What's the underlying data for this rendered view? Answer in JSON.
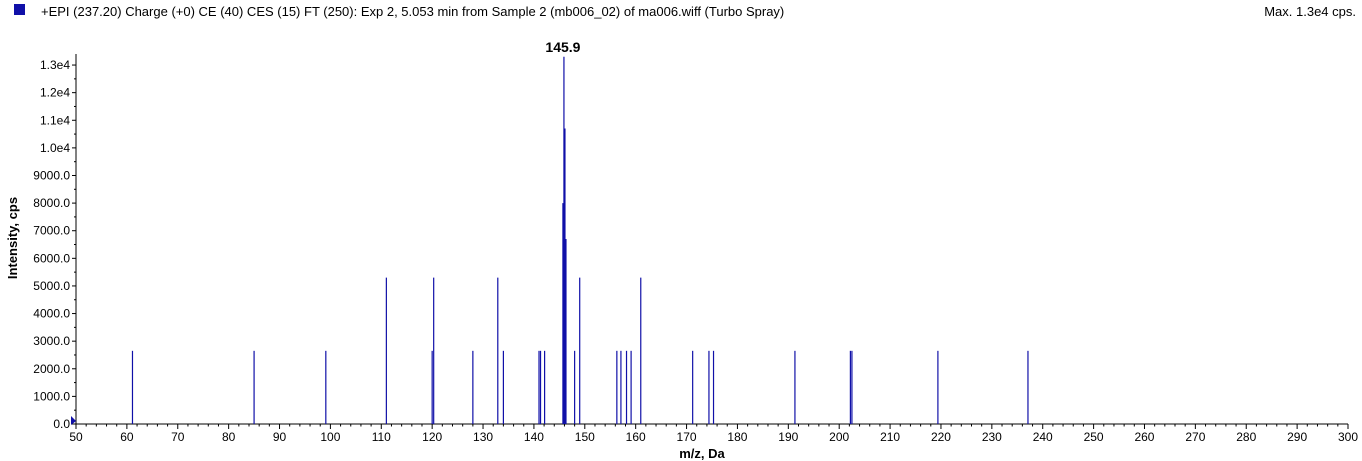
{
  "header": {
    "title": "+EPI (237.20) Charge (+0) CE (40) CES (15) FT (250): Exp 2, 5.053 min from Sample 2 (mb006_02) of ma006.wiff (Turbo Spray)",
    "max_label": "Max. 1.3e4 cps."
  },
  "colors": {
    "series": "#1010a8",
    "axis": "#000000"
  },
  "chart_data": {
    "type": "bar",
    "xlabel": "m/z, Da",
    "ylabel": "Intensity, cps",
    "xlim": [
      50,
      300
    ],
    "ylim": [
      0,
      13400
    ],
    "xticks": [
      50,
      60,
      70,
      80,
      90,
      100,
      110,
      120,
      130,
      140,
      150,
      160,
      170,
      180,
      190,
      200,
      210,
      220,
      230,
      240,
      250,
      260,
      270,
      280,
      290,
      300
    ],
    "yticks": [
      {
        "value": 0,
        "label": "0.0"
      },
      {
        "value": 1000,
        "label": "1000.0"
      },
      {
        "value": 2000,
        "label": "2000.0"
      },
      {
        "value": 3000,
        "label": "3000.0"
      },
      {
        "value": 4000,
        "label": "4000.0"
      },
      {
        "value": 5000,
        "label": "5000.0"
      },
      {
        "value": 6000,
        "label": "6000.0"
      },
      {
        "value": 7000,
        "label": "7000.0"
      },
      {
        "value": 8000,
        "label": "8000.0"
      },
      {
        "value": 9000,
        "label": "9000.0"
      },
      {
        "value": 10000,
        "label": "1.0e4"
      },
      {
        "value": 11000,
        "label": "1.1e4"
      },
      {
        "value": 12000,
        "label": "1.2e4"
      },
      {
        "value": 13000,
        "label": "1.3e4"
      }
    ],
    "peak_annotations": [
      {
        "x": 145.9,
        "label": "145.9"
      }
    ],
    "peaks": [
      {
        "mz": 61.1,
        "intensity": 2650
      },
      {
        "mz": 85.0,
        "intensity": 2650
      },
      {
        "mz": 99.1,
        "intensity": 2650
      },
      {
        "mz": 111.0,
        "intensity": 5300
      },
      {
        "mz": 120.0,
        "intensity": 2650
      },
      {
        "mz": 120.3,
        "intensity": 5300
      },
      {
        "mz": 128.0,
        "intensity": 2650
      },
      {
        "mz": 132.9,
        "intensity": 5300
      },
      {
        "mz": 134.0,
        "intensity": 2650
      },
      {
        "mz": 141.0,
        "intensity": 2650
      },
      {
        "mz": 141.3,
        "intensity": 2650
      },
      {
        "mz": 142.1,
        "intensity": 2650
      },
      {
        "mz": 145.7,
        "intensity": 8000
      },
      {
        "mz": 145.9,
        "intensity": 13300
      },
      {
        "mz": 146.1,
        "intensity": 10700
      },
      {
        "mz": 146.3,
        "intensity": 6700
      },
      {
        "mz": 148.0,
        "intensity": 2650
      },
      {
        "mz": 149.0,
        "intensity": 5300
      },
      {
        "mz": 156.3,
        "intensity": 2650
      },
      {
        "mz": 157.1,
        "intensity": 2650
      },
      {
        "mz": 158.2,
        "intensity": 2650
      },
      {
        "mz": 159.1,
        "intensity": 2650
      },
      {
        "mz": 161.0,
        "intensity": 5300
      },
      {
        "mz": 171.2,
        "intensity": 2650
      },
      {
        "mz": 174.4,
        "intensity": 2650
      },
      {
        "mz": 175.3,
        "intensity": 2650
      },
      {
        "mz": 191.3,
        "intensity": 2650
      },
      {
        "mz": 202.2,
        "intensity": 2650
      },
      {
        "mz": 202.5,
        "intensity": 2650
      },
      {
        "mz": 219.4,
        "intensity": 2650
      },
      {
        "mz": 237.1,
        "intensity": 2650
      }
    ]
  }
}
